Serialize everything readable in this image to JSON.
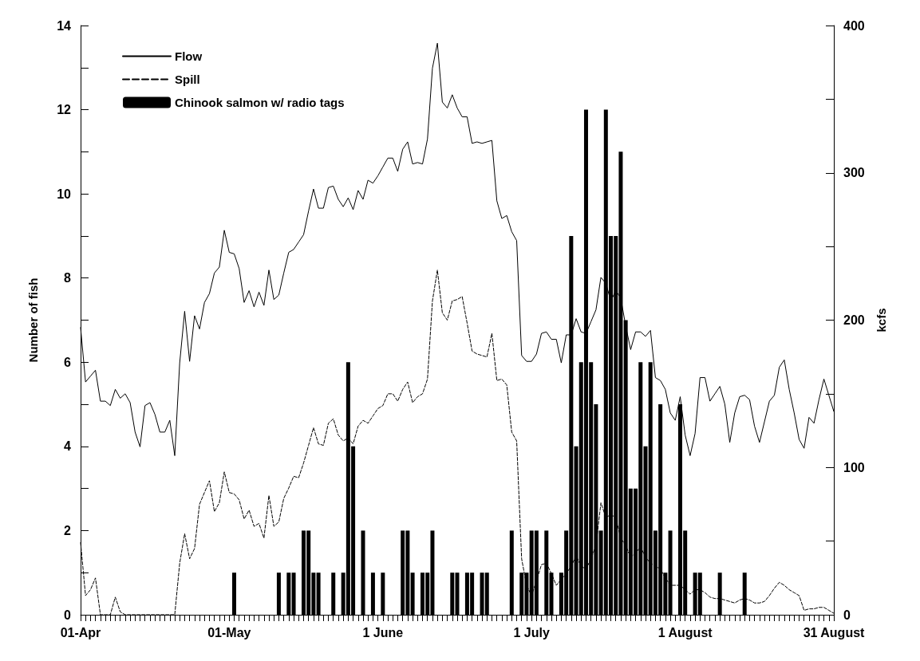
{
  "chart_data": {
    "type": "bar",
    "ylabel": "Number of fish",
    "y2label": "kcfs",
    "categories": [
      "01-Apr",
      null,
      null,
      null,
      null,
      null,
      null,
      null,
      null,
      null,
      null,
      null,
      null,
      null,
      null,
      null,
      null,
      null,
      null,
      null,
      null,
      null,
      null,
      null,
      null,
      null,
      null,
      null,
      null,
      null,
      "01-May",
      null,
      null,
      null,
      null,
      null,
      null,
      null,
      null,
      null,
      null,
      null,
      null,
      null,
      null,
      null,
      null,
      null,
      null,
      null,
      null,
      null,
      null,
      null,
      null,
      null,
      null,
      null,
      null,
      null,
      null,
      "1 June",
      null,
      null,
      null,
      null,
      null,
      null,
      null,
      null,
      null,
      null,
      null,
      null,
      null,
      null,
      null,
      null,
      null,
      null,
      null,
      null,
      null,
      null,
      null,
      null,
      null,
      null,
      null,
      null,
      null,
      "1 July",
      null,
      null,
      null,
      null,
      null,
      null,
      null,
      null,
      null,
      null,
      null,
      null,
      null,
      null,
      null,
      null,
      null,
      null,
      null,
      null,
      null,
      null,
      null,
      null,
      null,
      null,
      null,
      null,
      null,
      null,
      "1 August",
      null,
      null,
      null,
      null,
      null,
      null,
      null,
      null,
      null,
      null,
      null,
      null,
      null,
      null,
      null,
      null,
      null,
      null,
      null,
      null,
      null,
      null,
      null,
      null,
      null,
      null,
      null,
      null,
      null,
      "31 August"
    ],
    "series": [
      {
        "name": "Flow",
        "type": "line",
        "axis": "y2",
        "color": "#000000",
        "line_style": "solid",
        "values": [
          195,
          158,
          162,
          166,
          145,
          145,
          142,
          153,
          147,
          150,
          144,
          124,
          114,
          142,
          144,
          136,
          124,
          124,
          132,
          108,
          171,
          206,
          172,
          203,
          194,
          212,
          218,
          232,
          236,
          261,
          246,
          245,
          235,
          212,
          220,
          209,
          219,
          210,
          234,
          214,
          217,
          232,
          246,
          248,
          253,
          258,
          274,
          289,
          276,
          276,
          290,
          291,
          282,
          277,
          283,
          275,
          288,
          282,
          295,
          293,
          298,
          304,
          310,
          310,
          301,
          316,
          321,
          306,
          307,
          306,
          323,
          371,
          388,
          348,
          344,
          353,
          344,
          338,
          338,
          320,
          321,
          320,
          321,
          322,
          281,
          269,
          271,
          260,
          254,
          176,
          172,
          172,
          177,
          191,
          192,
          187,
          187,
          171,
          190,
          190,
          201,
          192,
          191,
          199,
          207,
          229,
          225,
          213,
          220,
          215,
          196,
          180,
          192,
          192,
          189,
          193,
          161,
          159,
          153,
          137,
          132,
          148,
          122,
          108,
          123,
          161,
          161,
          145,
          150,
          155,
          143,
          117,
          137,
          148,
          149,
          146,
          128,
          117,
          131,
          145,
          149,
          168,
          173,
          153,
          137,
          119,
          113,
          134,
          130,
          146,
          160,
          149,
          138
        ]
      },
      {
        "name": "Spill",
        "type": "line",
        "axis": "y2",
        "color": "#000000",
        "line_style": "dashed",
        "values": [
          49,
          13,
          17,
          25,
          0,
          0,
          0,
          12,
          2,
          0,
          0,
          0,
          0,
          0,
          0,
          0,
          0,
          0,
          0,
          0,
          35,
          55,
          38,
          45,
          75,
          83,
          91,
          70,
          76,
          97,
          83,
          82,
          78,
          65,
          71,
          60,
          62,
          52,
          81,
          60,
          63,
          79,
          86,
          94,
          93,
          103,
          115,
          127,
          116,
          115,
          130,
          133,
          122,
          118,
          120,
          116,
          128,
          132,
          130,
          135,
          140,
          142,
          150,
          150,
          145,
          153,
          158,
          144,
          148,
          150,
          160,
          213,
          234,
          205,
          200,
          213,
          214,
          216,
          198,
          179,
          177,
          176,
          175,
          191,
          159,
          160,
          156,
          124,
          118,
          38,
          20,
          13,
          23,
          34,
          35,
          28,
          20,
          24,
          28,
          33,
          40,
          33,
          31,
          38,
          47,
          76,
          66,
          68,
          66,
          52,
          47,
          39,
          42,
          46,
          39,
          35,
          33,
          31,
          25,
          20,
          20,
          20,
          17,
          14,
          17,
          17,
          15,
          12,
          11,
          11,
          10,
          9,
          8,
          10,
          11,
          10,
          8,
          8,
          9,
          13,
          18,
          22,
          20,
          17,
          15,
          13,
          3,
          4,
          4,
          5,
          5,
          3,
          1
        ]
      },
      {
        "name": "Chinook salmon w/ radio tags",
        "axis": "y",
        "color": "#000000",
        "values": [
          0,
          0,
          0,
          0,
          0,
          0,
          0,
          0,
          0,
          0,
          0,
          0,
          0,
          0,
          0,
          0,
          0,
          0,
          0,
          0,
          0,
          0,
          0,
          0,
          0,
          0,
          0,
          0,
          0,
          0,
          0,
          1,
          0,
          0,
          0,
          0,
          0,
          0,
          0,
          0,
          1,
          0,
          1,
          1,
          0,
          2,
          2,
          1,
          1,
          0,
          0,
          1,
          0,
          1,
          6,
          4,
          0,
          2,
          0,
          1,
          0,
          1,
          0,
          0,
          0,
          2,
          2,
          1,
          0,
          1,
          1,
          2,
          0,
          0,
          0,
          1,
          1,
          0,
          1,
          1,
          0,
          1,
          1,
          0,
          0,
          0,
          0,
          2,
          0,
          1,
          1,
          2,
          2,
          0,
          2,
          1,
          0,
          1,
          2,
          9,
          4,
          6,
          12,
          6,
          5,
          2,
          12,
          9,
          9,
          11,
          7,
          3,
          3,
          6,
          4,
          6,
          2,
          5,
          1,
          2,
          0,
          5,
          2,
          0,
          1,
          1,
          0,
          0,
          0,
          1,
          0,
          0,
          0,
          0,
          1,
          0,
          0,
          0,
          0,
          0,
          0,
          0,
          0,
          0,
          0,
          0,
          0,
          0,
          0,
          0,
          0,
          0,
          0
        ]
      }
    ],
    "ylim": [
      0,
      14
    ],
    "yticks": [
      0,
      {
        "value": 1,
        "label": null
      },
      2,
      {
        "value": 3,
        "label": null
      },
      4,
      {
        "value": 5,
        "label": null
      },
      6,
      {
        "value": 7,
        "label": null
      },
      8,
      {
        "value": 9,
        "label": null
      },
      10,
      {
        "value": 11,
        "label": null
      },
      12,
      {
        "value": 13,
        "label": null
      },
      14
    ],
    "y2lim": [
      0,
      400
    ],
    "y2ticks": [
      0,
      {
        "value": 50,
        "label": null
      },
      100,
      {
        "value": 150,
        "label": null
      },
      200,
      {
        "value": 250,
        "label": null
      },
      300,
      {
        "value": 350,
        "label": null
      },
      400
    ],
    "grid": false,
    "legend": "top left",
    "marker": "none"
  }
}
